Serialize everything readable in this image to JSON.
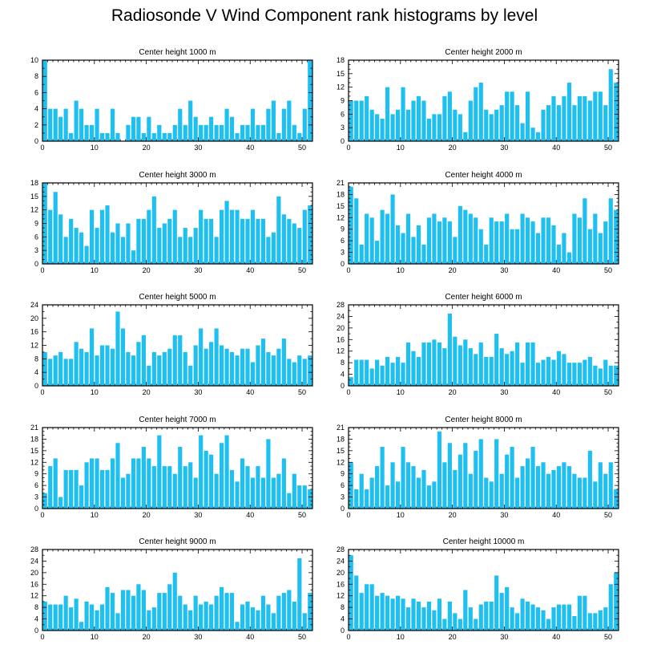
{
  "figure": {
    "title": "Radiosonde V Wind Component rank histograms by level"
  },
  "colors": {
    "bar": "#1ec0f2",
    "axis": "#000000",
    "background": "#ffffff"
  },
  "chart_data": [
    {
      "type": "bar",
      "title": "Center height 1000 m",
      "xlim": [
        0,
        52
      ],
      "ylim": [
        0,
        10
      ],
      "xticks": [
        0,
        10,
        20,
        30,
        40,
        50
      ],
      "yticks": [
        0,
        2,
        4,
        6,
        8,
        10
      ],
      "x": [
        0,
        1,
        2,
        3,
        4,
        5,
        6,
        7,
        8,
        9,
        10,
        11,
        12,
        13,
        14,
        15,
        16,
        17,
        18,
        19,
        20,
        21,
        22,
        23,
        24,
        25,
        26,
        27,
        28,
        29,
        30,
        31,
        32,
        33,
        34,
        35,
        36,
        37,
        38,
        39,
        40,
        41,
        42,
        43,
        44,
        45,
        46,
        47,
        48,
        49,
        50,
        51
      ],
      "values": [
        10,
        4,
        4,
        3,
        4,
        1,
        5,
        4,
        2,
        2,
        4,
        1,
        1,
        4,
        1,
        0,
        2,
        3,
        3,
        1,
        3,
        1,
        2,
        1,
        1,
        2,
        4,
        2,
        5,
        3,
        2,
        2,
        3,
        2,
        2,
        4,
        3,
        1,
        2,
        2,
        4,
        2,
        2,
        4,
        5,
        1,
        4,
        5,
        2,
        1,
        4,
        10
      ]
    },
    {
      "type": "bar",
      "title": "Center height 2000 m",
      "xlim": [
        0,
        52
      ],
      "ylim": [
        0,
        18
      ],
      "xticks": [
        0,
        10,
        20,
        30,
        40,
        50
      ],
      "yticks": [
        0,
        3,
        6,
        9,
        12,
        15,
        18
      ],
      "x": [
        0,
        1,
        2,
        3,
        4,
        5,
        6,
        7,
        8,
        9,
        10,
        11,
        12,
        13,
        14,
        15,
        16,
        17,
        18,
        19,
        20,
        21,
        22,
        23,
        24,
        25,
        26,
        27,
        28,
        29,
        30,
        31,
        32,
        33,
        34,
        35,
        36,
        37,
        38,
        39,
        40,
        41,
        42,
        43,
        44,
        45,
        46,
        47,
        48,
        49,
        50,
        51
      ],
      "values": [
        9,
        9,
        9,
        10,
        7,
        6,
        5,
        12,
        6,
        7,
        12,
        7,
        9,
        10,
        9,
        5,
        6,
        6,
        10,
        11,
        7,
        6,
        2,
        9,
        12,
        13,
        7,
        6,
        7,
        8,
        11,
        11,
        8,
        4,
        11,
        3,
        2,
        7,
        8,
        10,
        8,
        10,
        13,
        8,
        10,
        10,
        9,
        11,
        11,
        8,
        16,
        13
      ]
    },
    {
      "type": "bar",
      "title": "Center height 3000 m",
      "xlim": [
        0,
        52
      ],
      "ylim": [
        0,
        18
      ],
      "xticks": [
        0,
        10,
        20,
        30,
        40,
        50
      ],
      "yticks": [
        0,
        3,
        6,
        9,
        12,
        15,
        18
      ],
      "x": [
        0,
        1,
        2,
        3,
        4,
        5,
        6,
        7,
        8,
        9,
        10,
        11,
        12,
        13,
        14,
        15,
        16,
        17,
        18,
        19,
        20,
        21,
        22,
        23,
        24,
        25,
        26,
        27,
        28,
        29,
        30,
        31,
        32,
        33,
        34,
        35,
        36,
        37,
        38,
        39,
        40,
        41,
        42,
        43,
        44,
        45,
        46,
        47,
        48,
        49,
        50,
        51
      ],
      "values": [
        18,
        12,
        16,
        11,
        6,
        10,
        8,
        7,
        4,
        12,
        8,
        12,
        13,
        7,
        9,
        6,
        9,
        3,
        10,
        10,
        12,
        15,
        8,
        9,
        10,
        12,
        6,
        8,
        6,
        8,
        12,
        10,
        10,
        6,
        12,
        14,
        12,
        12,
        10,
        10,
        12,
        10,
        10,
        6,
        7,
        15,
        11,
        10,
        9,
        8,
        12,
        13
      ]
    },
    {
      "type": "bar",
      "title": "Center height 4000 m",
      "xlim": [
        0,
        52
      ],
      "ylim": [
        0,
        21
      ],
      "xticks": [
        0,
        10,
        20,
        30,
        40,
        50
      ],
      "yticks": [
        0,
        3,
        6,
        9,
        12,
        15,
        18,
        21
      ],
      "x": [
        0,
        1,
        2,
        3,
        4,
        5,
        6,
        7,
        8,
        9,
        10,
        11,
        12,
        13,
        14,
        15,
        16,
        17,
        18,
        19,
        20,
        21,
        22,
        23,
        24,
        25,
        26,
        27,
        28,
        29,
        30,
        31,
        32,
        33,
        34,
        35,
        36,
        37,
        38,
        39,
        40,
        41,
        42,
        43,
        44,
        45,
        46,
        47,
        48,
        49,
        50,
        51
      ],
      "values": [
        20,
        17,
        5,
        13,
        12,
        6,
        14,
        13,
        18,
        10,
        8,
        13,
        7,
        10,
        5,
        12,
        13,
        11,
        12,
        11,
        7,
        15,
        14,
        13,
        12,
        9,
        5,
        12,
        11,
        11,
        13,
        9,
        9,
        13,
        12,
        11,
        8,
        12,
        12,
        10,
        5,
        8,
        3,
        13,
        12,
        17,
        9,
        13,
        8,
        11,
        17,
        14
      ]
    },
    {
      "type": "bar",
      "title": "Center height 5000 m",
      "xlim": [
        0,
        52
      ],
      "ylim": [
        0,
        24
      ],
      "xticks": [
        0,
        10,
        20,
        30,
        40,
        50
      ],
      "yticks": [
        0,
        4,
        8,
        12,
        16,
        20,
        24
      ],
      "x": [
        0,
        1,
        2,
        3,
        4,
        5,
        6,
        7,
        8,
        9,
        10,
        11,
        12,
        13,
        14,
        15,
        16,
        17,
        18,
        19,
        20,
        21,
        22,
        23,
        24,
        25,
        26,
        27,
        28,
        29,
        30,
        31,
        32,
        33,
        34,
        35,
        36,
        37,
        38,
        39,
        40,
        41,
        42,
        43,
        44,
        45,
        46,
        47,
        48,
        49,
        50,
        51
      ],
      "values": [
        10,
        8,
        9,
        10,
        8,
        8,
        13,
        11,
        10,
        17,
        9,
        12,
        12,
        11,
        22,
        17,
        10,
        9,
        13,
        15,
        6,
        10,
        9,
        10,
        11,
        15,
        15,
        10,
        6,
        12,
        17,
        11,
        13,
        17,
        12,
        11,
        10,
        9,
        11,
        11,
        7,
        12,
        14,
        10,
        9,
        11,
        14,
        8,
        7,
        9,
        8,
        9
      ]
    },
    {
      "type": "bar",
      "title": "Center height 6000 m",
      "xlim": [
        0,
        52
      ],
      "ylim": [
        0,
        28
      ],
      "xticks": [
        0,
        10,
        20,
        30,
        40,
        50
      ],
      "yticks": [
        0,
        4,
        8,
        12,
        16,
        20,
        24,
        28
      ],
      "x": [
        0,
        1,
        2,
        3,
        4,
        5,
        6,
        7,
        8,
        9,
        10,
        11,
        12,
        13,
        14,
        15,
        16,
        17,
        18,
        19,
        20,
        21,
        22,
        23,
        24,
        25,
        26,
        27,
        28,
        29,
        30,
        31,
        32,
        33,
        34,
        35,
        36,
        37,
        38,
        39,
        40,
        41,
        42,
        43,
        44,
        45,
        46,
        47,
        48,
        49,
        50,
        51
      ],
      "values": [
        3,
        9,
        9,
        9,
        6,
        9,
        7,
        10,
        8,
        10,
        8,
        15,
        12,
        10,
        15,
        15,
        16,
        15,
        13,
        25,
        17,
        14,
        16,
        13,
        11,
        15,
        10,
        10,
        18,
        13,
        11,
        12,
        15,
        8,
        15,
        15,
        8,
        9,
        10,
        9,
        12,
        11,
        8,
        8,
        8,
        9,
        10,
        7,
        6,
        9,
        7,
        7
      ]
    },
    {
      "type": "bar",
      "title": "Center height 7000 m",
      "xlim": [
        0,
        52
      ],
      "ylim": [
        0,
        21
      ],
      "xticks": [
        0,
        10,
        20,
        30,
        40,
        50
      ],
      "yticks": [
        0,
        3,
        6,
        9,
        12,
        15,
        18,
        21
      ],
      "x": [
        0,
        1,
        2,
        3,
        4,
        5,
        6,
        7,
        8,
        9,
        10,
        11,
        12,
        13,
        14,
        15,
        16,
        17,
        18,
        19,
        20,
        21,
        22,
        23,
        24,
        25,
        26,
        27,
        28,
        29,
        30,
        31,
        32,
        33,
        34,
        35,
        36,
        37,
        38,
        39,
        40,
        41,
        42,
        43,
        44,
        45,
        46,
        47,
        48,
        49,
        50,
        51
      ],
      "values": [
        4,
        11,
        13,
        3,
        10,
        10,
        10,
        6,
        12,
        13,
        13,
        10,
        10,
        13,
        17,
        8,
        9,
        13,
        13,
        16,
        13,
        11,
        19,
        11,
        11,
        9,
        16,
        11,
        12,
        8,
        19,
        15,
        14,
        9,
        17,
        19,
        10,
        7,
        13,
        11,
        8,
        11,
        8,
        18,
        8,
        9,
        13,
        4,
        9,
        6,
        6,
        5
      ]
    },
    {
      "type": "bar",
      "title": "Center height 8000 m",
      "xlim": [
        0,
        52
      ],
      "ylim": [
        0,
        21
      ],
      "xticks": [
        0,
        10,
        20,
        30,
        40,
        50
      ],
      "yticks": [
        0,
        3,
        6,
        9,
        12,
        15,
        18,
        21
      ],
      "x": [
        0,
        1,
        2,
        3,
        4,
        5,
        6,
        7,
        8,
        9,
        10,
        11,
        12,
        13,
        14,
        15,
        16,
        17,
        18,
        19,
        20,
        21,
        22,
        23,
        24,
        25,
        26,
        27,
        28,
        29,
        30,
        31,
        32,
        33,
        34,
        35,
        36,
        37,
        38,
        39,
        40,
        41,
        42,
        43,
        44,
        45,
        46,
        47,
        48,
        49,
        50,
        51
      ],
      "values": [
        12,
        5,
        9,
        5,
        8,
        11,
        16,
        6,
        12,
        7,
        16,
        12,
        11,
        8,
        10,
        6,
        7,
        20,
        12,
        17,
        10,
        14,
        17,
        9,
        15,
        18,
        8,
        7,
        18,
        9,
        14,
        16,
        8,
        11,
        13,
        16,
        11,
        12,
        9,
        10,
        11,
        12,
        11,
        9,
        8,
        8,
        15,
        7,
        12,
        9,
        12,
        5
      ]
    },
    {
      "type": "bar",
      "title": "Center height 9000 m",
      "xlim": [
        0,
        52
      ],
      "ylim": [
        0,
        28
      ],
      "xticks": [
        0,
        10,
        20,
        30,
        40,
        50
      ],
      "yticks": [
        0,
        4,
        8,
        12,
        16,
        20,
        24,
        28
      ],
      "x": [
        0,
        1,
        2,
        3,
        4,
        5,
        6,
        7,
        8,
        9,
        10,
        11,
        12,
        13,
        14,
        15,
        16,
        17,
        18,
        19,
        20,
        21,
        22,
        23,
        24,
        25,
        26,
        27,
        28,
        29,
        30,
        31,
        32,
        33,
        34,
        35,
        36,
        37,
        38,
        39,
        40,
        41,
        42,
        43,
        44,
        45,
        46,
        47,
        48,
        49,
        50,
        51
      ],
      "values": [
        10,
        9,
        9,
        9,
        12,
        8,
        11,
        3,
        10,
        9,
        7,
        9,
        15,
        13,
        6,
        14,
        14,
        12,
        16,
        14,
        7,
        8,
        13,
        13,
        16,
        20,
        12,
        9,
        7,
        12,
        9,
        10,
        9,
        12,
        15,
        13,
        13,
        3,
        9,
        10,
        8,
        7,
        12,
        9,
        6,
        12,
        13,
        14,
        10,
        25,
        6,
        13
      ]
    },
    {
      "type": "bar",
      "title": "Center height 10000 m",
      "xlim": [
        0,
        52
      ],
      "ylim": [
        0,
        28
      ],
      "xticks": [
        0,
        10,
        20,
        30,
        40,
        50
      ],
      "yticks": [
        0,
        4,
        8,
        12,
        16,
        20,
        24,
        28
      ],
      "x": [
        0,
        1,
        2,
        3,
        4,
        5,
        6,
        7,
        8,
        9,
        10,
        11,
        12,
        13,
        14,
        15,
        16,
        17,
        18,
        19,
        20,
        21,
        22,
        23,
        24,
        25,
        26,
        27,
        28,
        29,
        30,
        31,
        32,
        33,
        34,
        35,
        36,
        37,
        38,
        39,
        40,
        41,
        42,
        43,
        44,
        45,
        46,
        47,
        48,
        49,
        50,
        51
      ],
      "values": [
        26,
        19,
        13,
        16,
        16,
        12,
        13,
        12,
        11,
        12,
        11,
        8,
        11,
        10,
        8,
        10,
        7,
        11,
        4,
        10,
        6,
        4,
        14,
        8,
        4,
        9,
        10,
        10,
        19,
        13,
        15,
        8,
        6,
        11,
        10,
        9,
        8,
        7,
        4,
        8,
        9,
        9,
        9,
        5,
        12,
        12,
        6,
        6,
        7,
        8,
        16,
        20
      ]
    }
  ]
}
